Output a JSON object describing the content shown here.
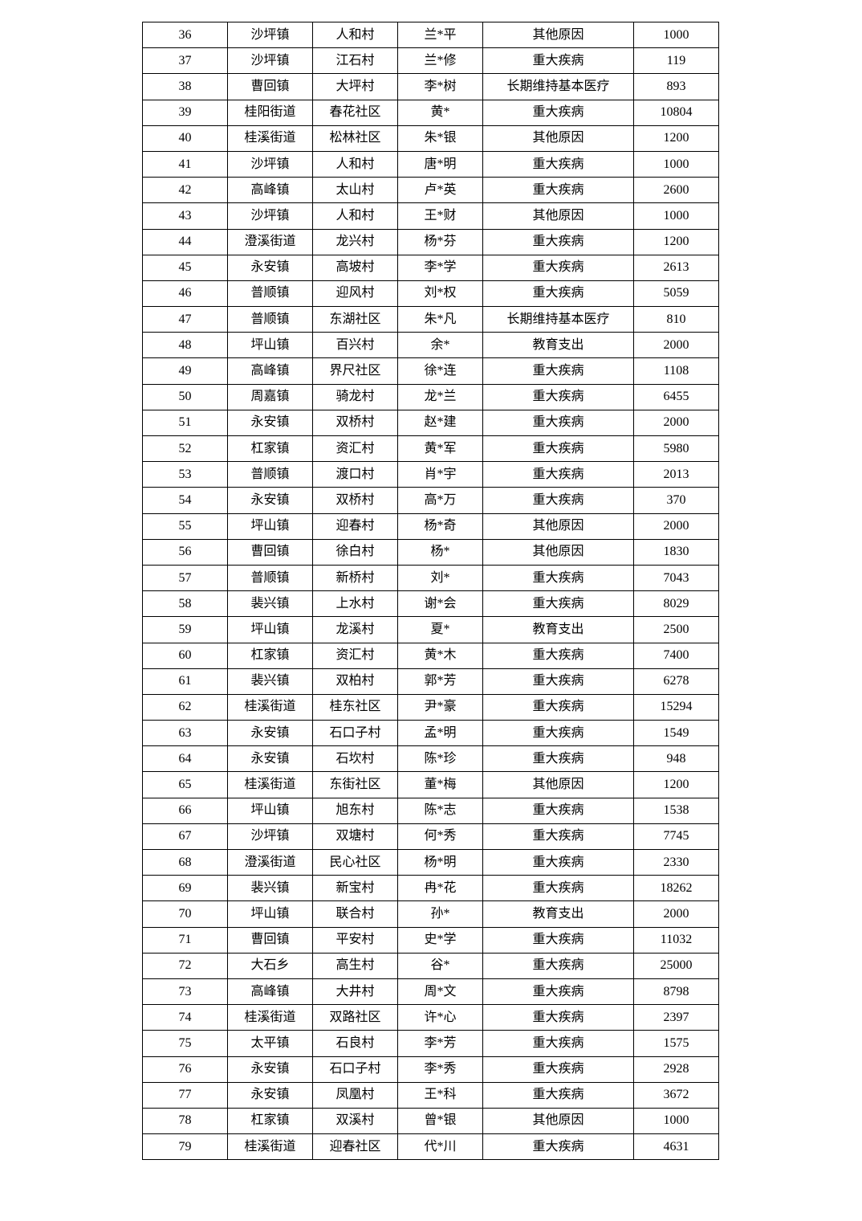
{
  "table": {
    "rows": [
      [
        "36",
        "沙坪镇",
        "人和村",
        "兰*平",
        "其他原因",
        "1000"
      ],
      [
        "37",
        "沙坪镇",
        "江石村",
        "兰*修",
        "重大疾病",
        "119"
      ],
      [
        "38",
        "曹回镇",
        "大坪村",
        "李*树",
        "长期维持基本医疗",
        "893"
      ],
      [
        "39",
        "桂阳街道",
        "春花社区",
        "黄*",
        "重大疾病",
        "10804"
      ],
      [
        "40",
        "桂溪街道",
        "松林社区",
        "朱*银",
        "其他原因",
        "1200"
      ],
      [
        "41",
        "沙坪镇",
        "人和村",
        "唐*明",
        "重大疾病",
        "1000"
      ],
      [
        "42",
        "高峰镇",
        "太山村",
        "卢*英",
        "重大疾病",
        "2600"
      ],
      [
        "43",
        "沙坪镇",
        "人和村",
        "王*财",
        "其他原因",
        "1000"
      ],
      [
        "44",
        "澄溪街道",
        "龙兴村",
        "杨*芬",
        "重大疾病",
        "1200"
      ],
      [
        "45",
        "永安镇",
        "高坡村",
        "李*学",
        "重大疾病",
        "2613"
      ],
      [
        "46",
        "普顺镇",
        "迎风村",
        "刘*权",
        "重大疾病",
        "5059"
      ],
      [
        "47",
        "普顺镇",
        "东湖社区",
        "朱*凡",
        "长期维持基本医疗",
        "810"
      ],
      [
        "48",
        "坪山镇",
        "百兴村",
        "余*",
        "教育支出",
        "2000"
      ],
      [
        "49",
        "高峰镇",
        "界尺社区",
        "徐*连",
        "重大疾病",
        "1108"
      ],
      [
        "50",
        "周嘉镇",
        "骑龙村",
        "龙*兰",
        "重大疾病",
        "6455"
      ],
      [
        "51",
        "永安镇",
        "双桥村",
        "赵*建",
        "重大疾病",
        "2000"
      ],
      [
        "52",
        "杠家镇",
        "资汇村",
        "黄*军",
        "重大疾病",
        "5980"
      ],
      [
        "53",
        "普顺镇",
        "渡口村",
        "肖*宇",
        "重大疾病",
        "2013"
      ],
      [
        "54",
        "永安镇",
        "双桥村",
        "高*万",
        "重大疾病",
        "370"
      ],
      [
        "55",
        "坪山镇",
        "迎春村",
        "杨*奇",
        "其他原因",
        "2000"
      ],
      [
        "56",
        "曹回镇",
        "徐白村",
        "杨*",
        "其他原因",
        "1830"
      ],
      [
        "57",
        "普顺镇",
        "新桥村",
        "刘*",
        "重大疾病",
        "7043"
      ],
      [
        "58",
        "裴兴镇",
        "上水村",
        "谢*会",
        "重大疾病",
        "8029"
      ],
      [
        "59",
        "坪山镇",
        "龙溪村",
        "夏*",
        "教育支出",
        "2500"
      ],
      [
        "60",
        "杠家镇",
        "资汇村",
        "黄*木",
        "重大疾病",
        "7400"
      ],
      [
        "61",
        "裴兴镇",
        "双柏村",
        "郭*芳",
        "重大疾病",
        "6278"
      ],
      [
        "62",
        "桂溪街道",
        "桂东社区",
        "尹*豪",
        "重大疾病",
        "15294"
      ],
      [
        "63",
        "永安镇",
        "石口子村",
        "孟*明",
        "重大疾病",
        "1549"
      ],
      [
        "64",
        "永安镇",
        "石坎村",
        "陈*珍",
        "重大疾病",
        "948"
      ],
      [
        "65",
        "桂溪街道",
        "东街社区",
        "董*梅",
        "其他原因",
        "1200"
      ],
      [
        "66",
        "坪山镇",
        "旭东村",
        "陈*志",
        "重大疾病",
        "1538"
      ],
      [
        "67",
        "沙坪镇",
        "双塘村",
        "何*秀",
        "重大疾病",
        "7745"
      ],
      [
        "68",
        "澄溪街道",
        "民心社区",
        "杨*明",
        "重大疾病",
        "2330"
      ],
      [
        "69",
        "裴兴镇",
        "新宝村",
        "冉*花",
        "重大疾病",
        "18262"
      ],
      [
        "70",
        "坪山镇",
        "联合村",
        "孙*",
        "教育支出",
        "2000"
      ],
      [
        "71",
        "曹回镇",
        "平安村",
        "史*学",
        "重大疾病",
        "11032"
      ],
      [
        "72",
        "大石乡",
        "高生村",
        "谷*",
        "重大疾病",
        "25000"
      ],
      [
        "73",
        "高峰镇",
        "大井村",
        "周*文",
        "重大疾病",
        "8798"
      ],
      [
        "74",
        "桂溪街道",
        "双路社区",
        "许*心",
        "重大疾病",
        "2397"
      ],
      [
        "75",
        "太平镇",
        "石良村",
        "李*芳",
        "重大疾病",
        "1575"
      ],
      [
        "76",
        "永安镇",
        "石口子村",
        "李*秀",
        "重大疾病",
        "2928"
      ],
      [
        "77",
        "永安镇",
        "凤凰村",
        "王*科",
        "重大疾病",
        "3672"
      ],
      [
        "78",
        "杠家镇",
        "双溪村",
        "曾*银",
        "其他原因",
        "1000"
      ],
      [
        "79",
        "桂溪街道",
        "迎春社区",
        "代*川",
        "重大疾病",
        "4631"
      ]
    ]
  }
}
